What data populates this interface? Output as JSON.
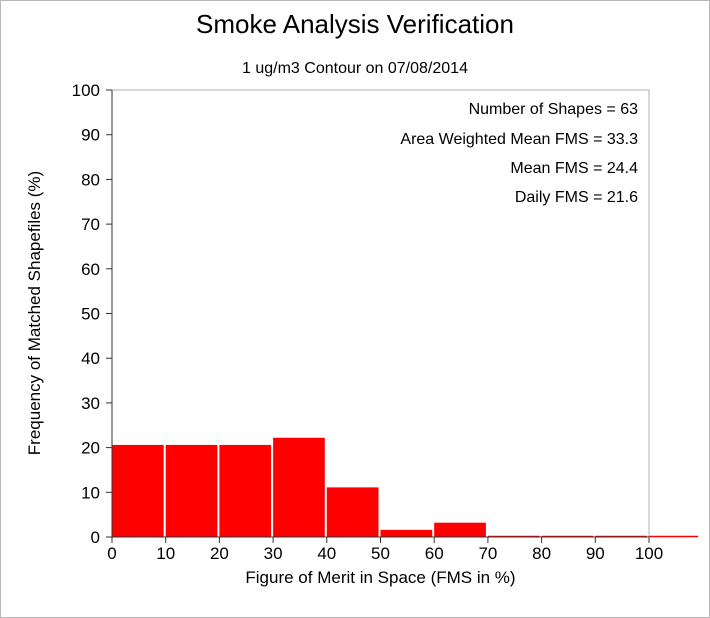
{
  "chart_data": {
    "type": "bar",
    "title": "Smoke Analysis Verification",
    "subtitle": "1 ug/m3 Contour on 07/08/2014",
    "xlabel": "Figure of Merit in Space (FMS in %)",
    "ylabel": "Frequency of Matched Shapefiles (%)",
    "xlim": [
      0,
      100
    ],
    "ylim": [
      0,
      100
    ],
    "x_ticks": [
      "0",
      "10",
      "20",
      "30",
      "40",
      "50",
      "60",
      "70",
      "80",
      "90",
      "100"
    ],
    "y_ticks": [
      "0",
      "10",
      "20",
      "30",
      "40",
      "50",
      "60",
      "70",
      "80",
      "90",
      "100"
    ],
    "bins": [
      {
        "from": 0,
        "to": 10,
        "value": 20.6
      },
      {
        "from": 10,
        "to": 20,
        "value": 20.6
      },
      {
        "from": 20,
        "to": 30,
        "value": 20.6
      },
      {
        "from": 30,
        "to": 40,
        "value": 22.2
      },
      {
        "from": 40,
        "to": 50,
        "value": 11.1
      },
      {
        "from": 50,
        "to": 60,
        "value": 1.6
      },
      {
        "from": 60,
        "to": 70,
        "value": 3.2
      },
      {
        "from": 70,
        "to": 80,
        "value": 0
      },
      {
        "from": 80,
        "to": 90,
        "value": 0
      },
      {
        "from": 90,
        "to": 100,
        "value": 0
      }
    ],
    "bar_color": "#ff0000",
    "annotations": [
      "Number of Shapes = 63",
      "Area Weighted Mean FMS = 33.3",
      "Mean FMS = 24.4",
      "Daily FMS = 21.6"
    ]
  }
}
